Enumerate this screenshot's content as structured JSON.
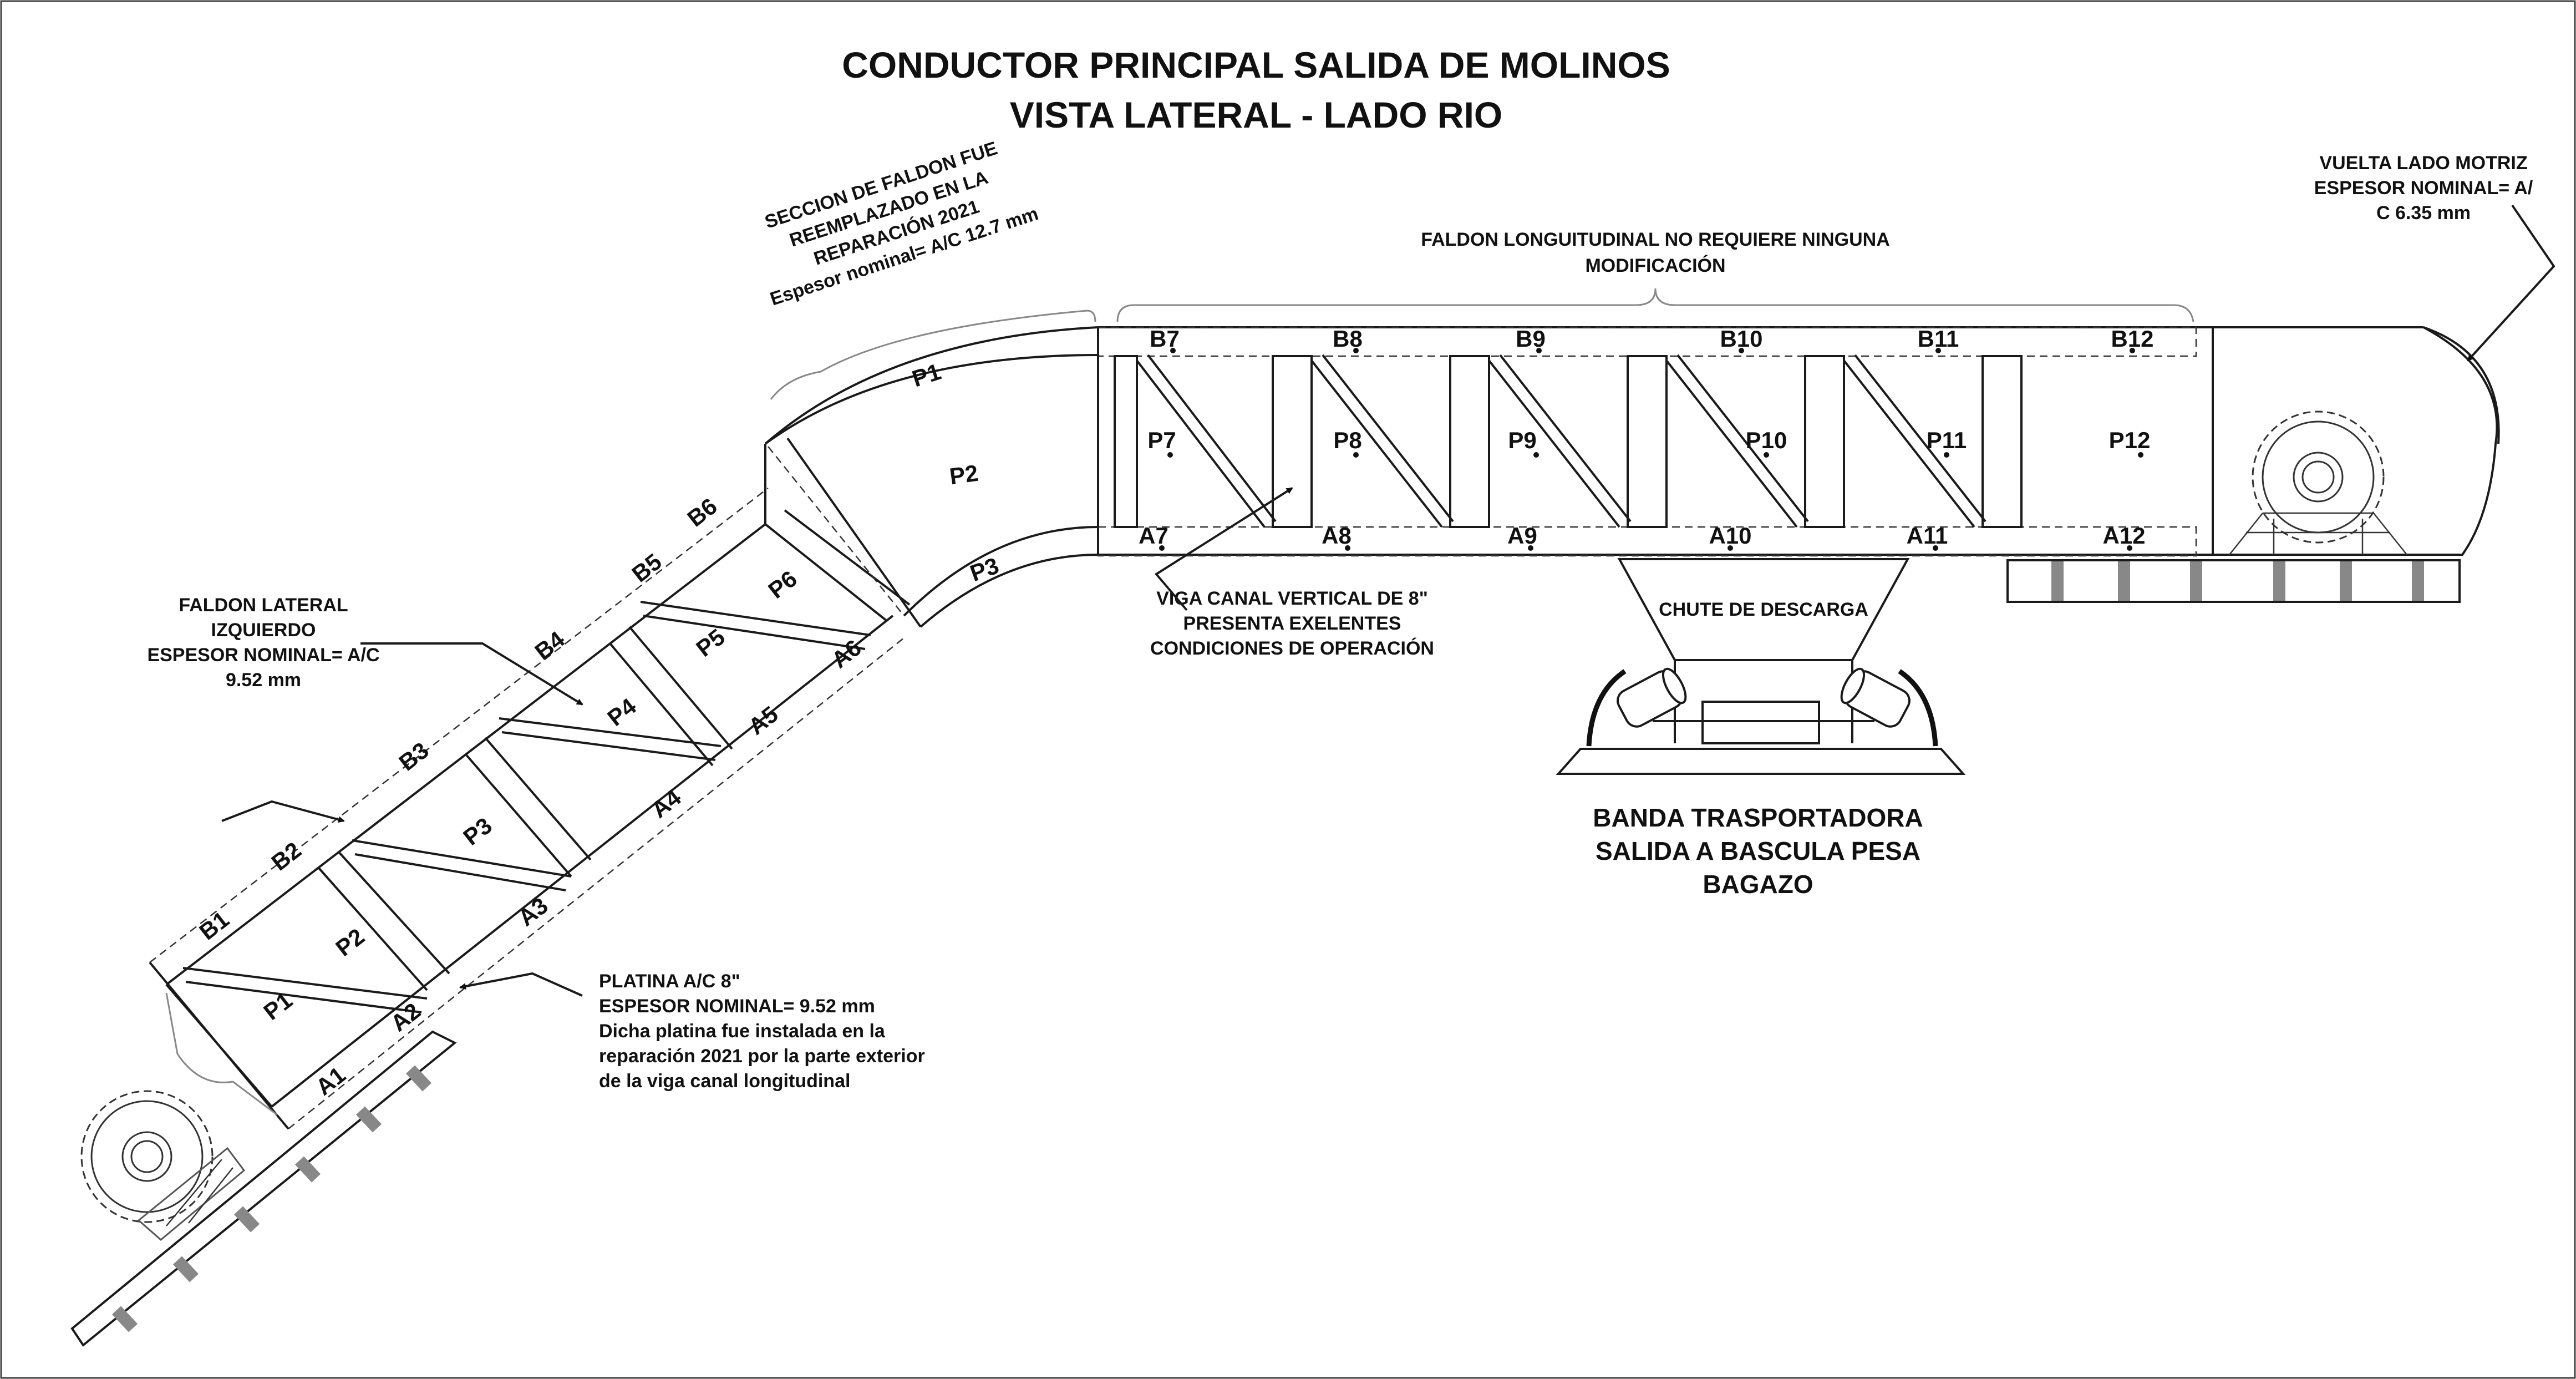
{
  "title": {
    "line1": "CONDUCTOR PRINCIPAL SALIDA DE MOLINOS",
    "line2": "VISTA LATERAL - LADO RIO"
  },
  "notes": {
    "seccion_faldon": [
      "SECCION DE FALDON FUE",
      "REEMPLAZADO EN LA",
      "REPARACIÓN 2021",
      "Espesor nominal= A/C 12.7 mm"
    ],
    "faldon_longitudinal": [
      "FALDON LONGUITUDINAL NO REQUIERE NINGUNA",
      "MODIFICACIÓN"
    ],
    "vuelta_motriz": [
      "VUELTA LADO MOTRIZ",
      "ESPESOR NOMINAL= A/",
      "C 6.35 mm"
    ],
    "faldon_lateral": [
      "FALDON LATERAL",
      "IZQUIERDO",
      "ESPESOR NOMINAL= A/C",
      "9.52 mm"
    ],
    "viga_canal": [
      "VIGA CANAL VERTICAL DE 8\"",
      "PRESENTA EXELENTES",
      "CONDICIONES DE OPERACIÓN"
    ],
    "platina": [
      "PLATINA  A/C 8\"",
      "ESPESOR NOMINAL= 9.52 mm",
      "Dicha platina fue instalada en la",
      "reparación 2021 por la parte exterior",
      "de la viga canal longitudinal"
    ],
    "chute": "CHUTE DE DESCARGA",
    "banda": [
      "BANDA TRASPORTADORA",
      "SALIDA A BASCULA PESA",
      "BAGAZO"
    ]
  },
  "labels": {
    "incline_top": [
      "B1",
      "B2",
      "B3",
      "B4",
      "B5",
      "B6"
    ],
    "incline_bottom": [
      "A1",
      "A2",
      "A3",
      "A4",
      "A5",
      "A6"
    ],
    "incline_panels": [
      "P1",
      "P2",
      "P3",
      "P4",
      "P5",
      "P6"
    ],
    "curve_panels": [
      "P1",
      "P2",
      "P3"
    ],
    "horiz_top": [
      "B7",
      "B8",
      "B9",
      "B10",
      "B11",
      "B12"
    ],
    "horiz_bottom": [
      "A7",
      "A8",
      "A9",
      "A10",
      "A11",
      "A12"
    ],
    "horiz_panels": [
      "P7",
      "P8",
      "P9",
      "P10",
      "P11",
      "P12"
    ]
  }
}
